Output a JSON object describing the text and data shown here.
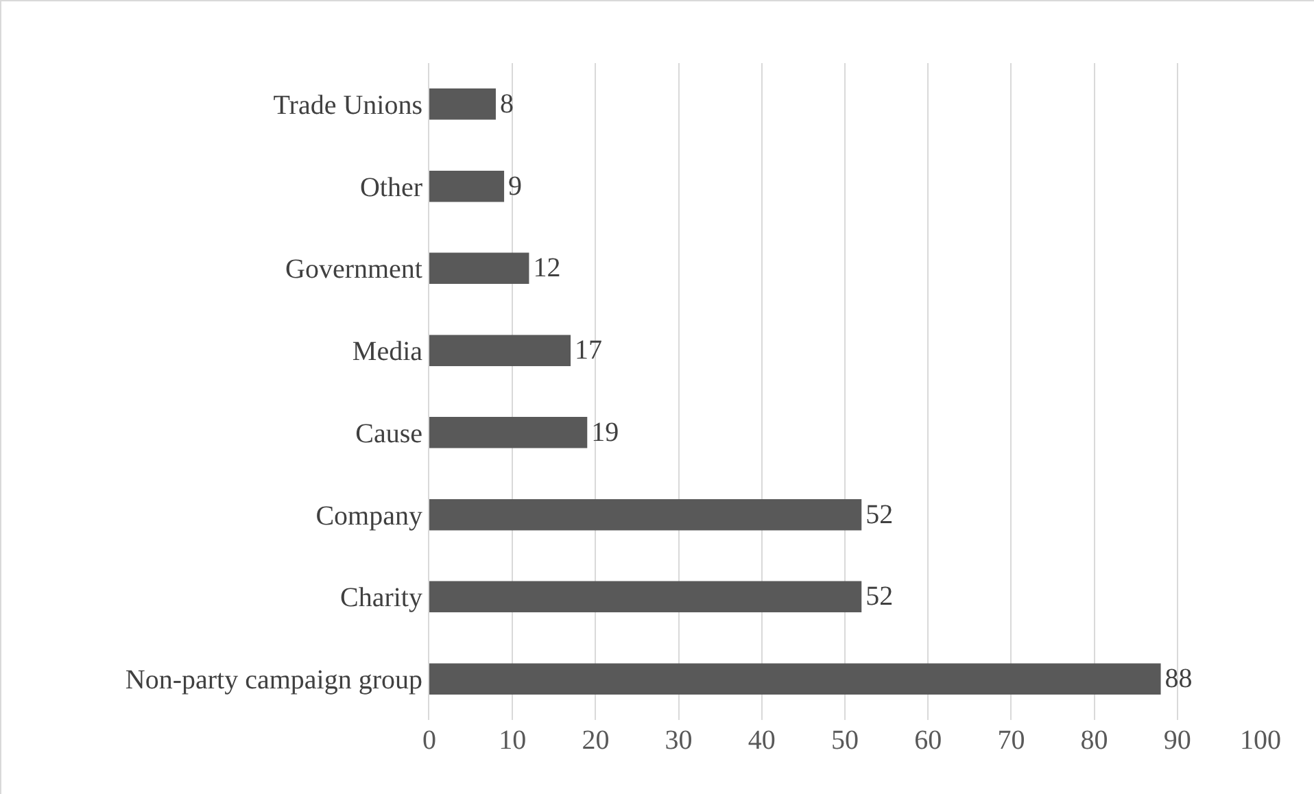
{
  "chart_data": {
    "type": "bar",
    "orientation": "horizontal",
    "categories": [
      "Trade Unions",
      "Other",
      "Government",
      "Media",
      "Cause",
      "Company",
      "Charity",
      "Non-party campaign group"
    ],
    "values": [
      8,
      9,
      12,
      17,
      19,
      52,
      52,
      88
    ],
    "color": "#595959",
    "xlim": [
      0,
      100
    ],
    "xticks": [
      0,
      10,
      20,
      30,
      40,
      50,
      60,
      70,
      80,
      90,
      100
    ],
    "grid": "x",
    "data_labels": true
  }
}
